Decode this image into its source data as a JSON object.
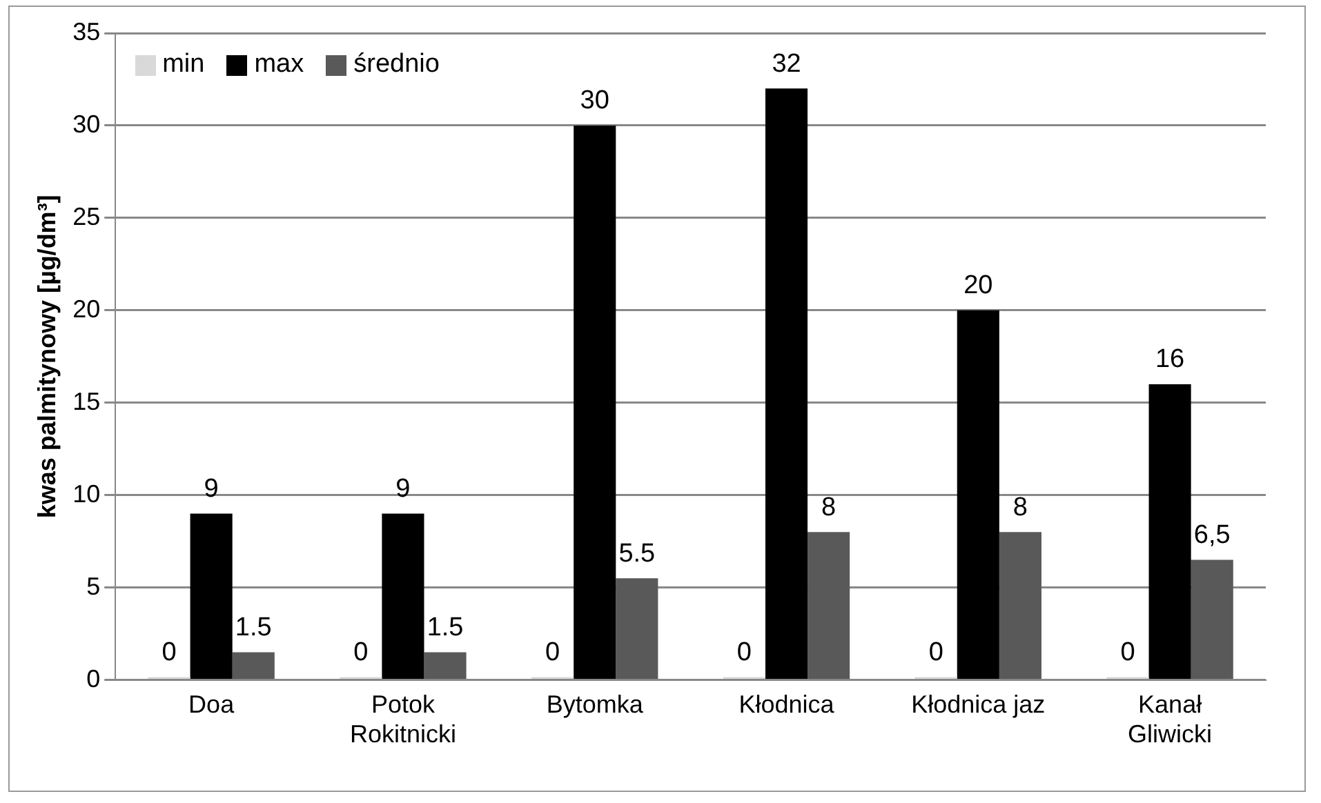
{
  "chart_data": {
    "type": "bar",
    "ylabel": "kwas palmitynowy [µg/dm³]",
    "categories": [
      "Doa",
      "Potok Rokitnicki",
      "Bytomka",
      "Kłodnica",
      "Kłodnica jaz",
      "Kanał Gliwicki"
    ],
    "series": [
      {
        "name": "min",
        "color": "#d9d9d9",
        "values": [
          0,
          0,
          0,
          0,
          0,
          0
        ],
        "value_labels": [
          "0",
          "0",
          "0",
          "0",
          "0",
          "0"
        ]
      },
      {
        "name": "max",
        "color": "#000000",
        "values": [
          9,
          9,
          30,
          32,
          20,
          16
        ],
        "value_labels": [
          "9",
          "9",
          "30",
          "32",
          "20",
          "16"
        ]
      },
      {
        "name": "średnio",
        "color": "#595959",
        "values": [
          1.5,
          1.5,
          5.5,
          8,
          8,
          6.5
        ],
        "value_labels": [
          "1.5",
          "1.5",
          "5.5",
          "8",
          "8",
          "6,5"
        ]
      }
    ],
    "ylim": [
      0,
      35
    ],
    "yticks": [
      0,
      5,
      10,
      15,
      20,
      25,
      30,
      35
    ],
    "grid": "y",
    "legend": "top left"
  }
}
